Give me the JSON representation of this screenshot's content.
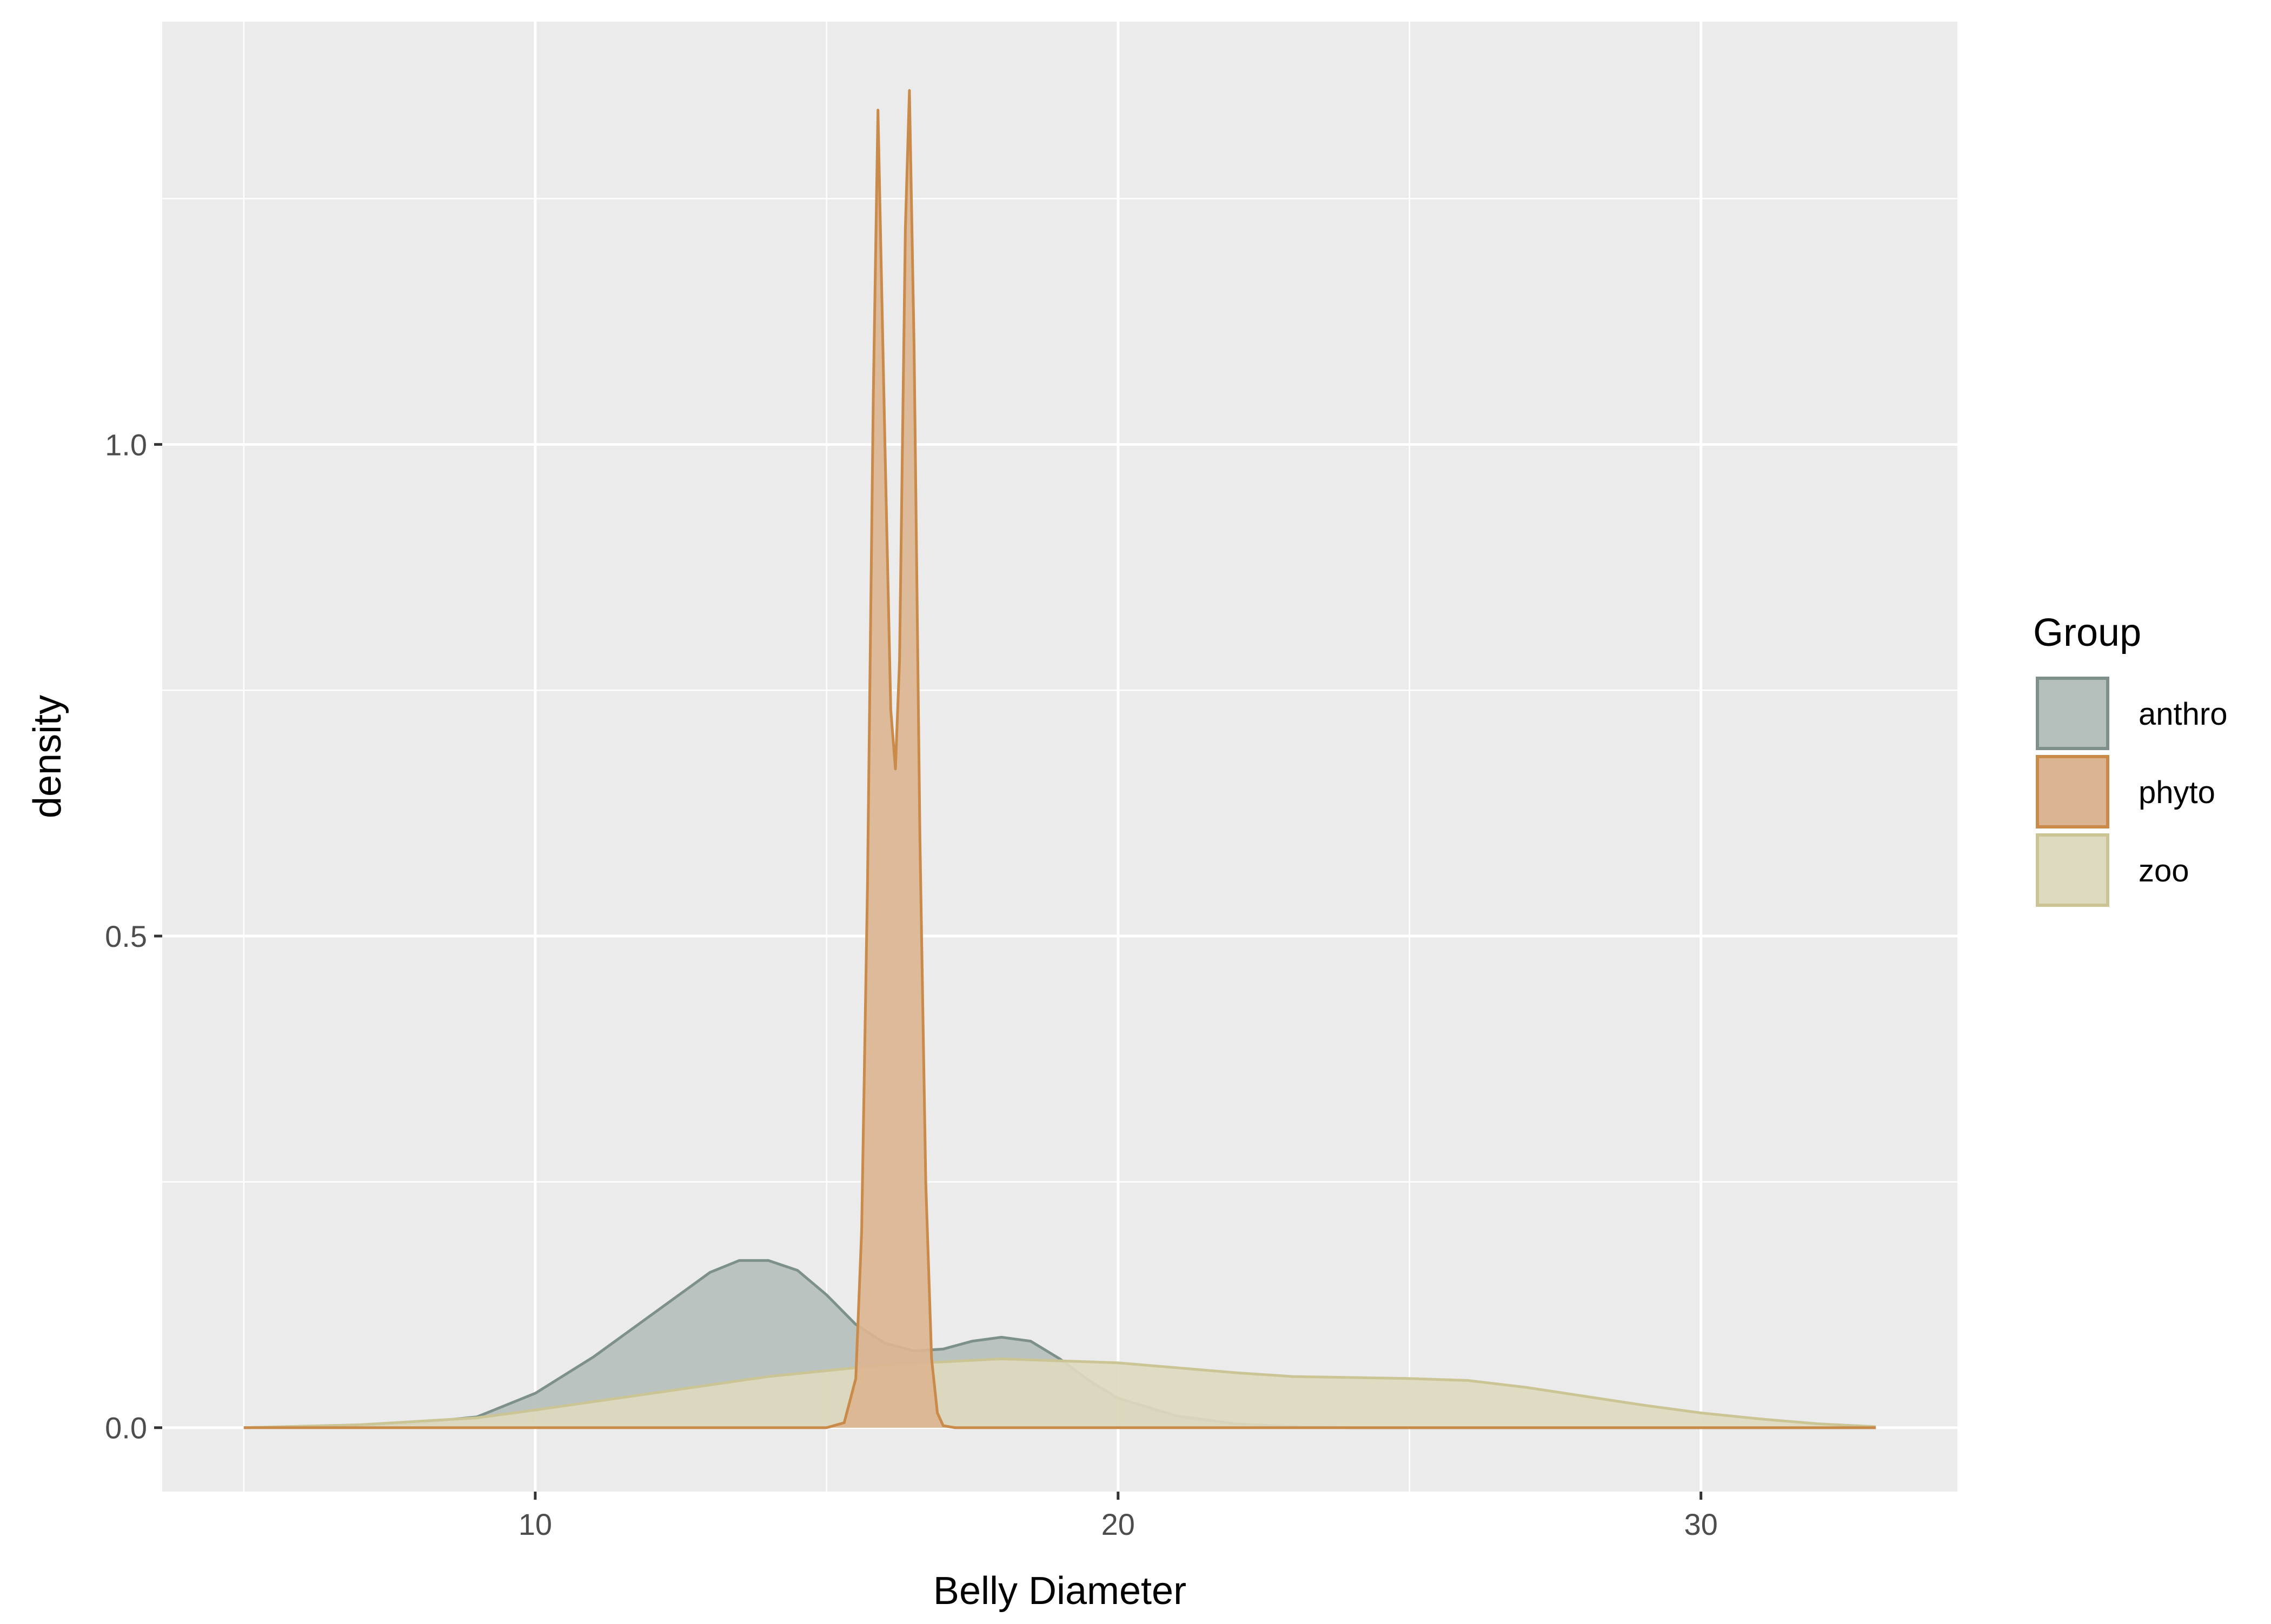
{
  "chart_data": {
    "type": "area",
    "subtype": "density",
    "title": "",
    "xlabel": "Belly Diameter",
    "ylabel": "density",
    "xlim": [
      3.6,
      34.4
    ],
    "ylim": [
      -0.065,
      1.43
    ],
    "x_ticks": [
      10,
      20,
      30
    ],
    "x_tick_labels": [
      "10",
      "20",
      "30"
    ],
    "y_ticks": [
      0.0,
      0.5,
      1.0
    ],
    "y_tick_labels": [
      "0.0",
      "0.5",
      "1.0"
    ],
    "x_minor_grid": [
      5,
      15,
      25
    ],
    "y_minor_grid": [
      0.25,
      0.75,
      1.25
    ],
    "grid": true,
    "panel_background": "#ebebeb",
    "grid_color": "#ffffff",
    "legend": {
      "title": "Group",
      "position": "right"
    },
    "series": [
      {
        "name": "anthro",
        "fill": "#b5bfbb",
        "stroke": "#7d918a",
        "x": [
          5.0,
          6.0,
          7.0,
          8.0,
          9.0,
          10.0,
          11.0,
          12.0,
          13.0,
          13.5,
          14.0,
          14.5,
          15.0,
          15.5,
          16.0,
          16.5,
          17.0,
          17.5,
          18.0,
          18.5,
          19.0,
          19.5,
          20.0,
          21.0,
          22.0,
          23.0,
          24.0,
          26.0,
          30.0,
          33.0
        ],
        "y": [
          0.0,
          0.001,
          0.002,
          0.005,
          0.011,
          0.035,
          0.072,
          0.115,
          0.158,
          0.17,
          0.17,
          0.16,
          0.135,
          0.105,
          0.086,
          0.078,
          0.08,
          0.088,
          0.092,
          0.088,
          0.07,
          0.048,
          0.03,
          0.012,
          0.004,
          0.001,
          0.0,
          0.0,
          0.0,
          0.0
        ]
      },
      {
        "name": "phyto",
        "fill": "#dbb591",
        "stroke": "#c98a4a",
        "x": [
          5.0,
          15.0,
          15.3,
          15.5,
          15.6,
          15.7,
          15.8,
          15.88,
          16.0,
          16.1,
          16.18,
          16.25,
          16.3,
          16.35,
          16.42,
          16.5,
          16.6,
          16.7,
          16.8,
          16.9,
          17.0,
          17.2,
          33.0
        ],
        "y": [
          0.0,
          0.0,
          0.005,
          0.05,
          0.2,
          0.55,
          1.05,
          1.34,
          1.0,
          0.73,
          0.67,
          0.78,
          1.0,
          1.22,
          1.36,
          1.1,
          0.6,
          0.25,
          0.07,
          0.015,
          0.002,
          0.0,
          0.0
        ]
      },
      {
        "name": "zoo",
        "fill": "#dedabf",
        "stroke": "#cbc596",
        "x": [
          5.0,
          7.0,
          9.0,
          10.0,
          12.0,
          14.0,
          16.0,
          18.0,
          20.0,
          22.0,
          23.0,
          25.0,
          26.0,
          27.0,
          28.0,
          29.0,
          30.0,
          31.0,
          32.0,
          33.0
        ],
        "y": [
          0.0,
          0.003,
          0.01,
          0.018,
          0.035,
          0.052,
          0.064,
          0.07,
          0.066,
          0.056,
          0.052,
          0.05,
          0.048,
          0.041,
          0.032,
          0.023,
          0.015,
          0.009,
          0.004,
          0.001
        ]
      }
    ]
  }
}
